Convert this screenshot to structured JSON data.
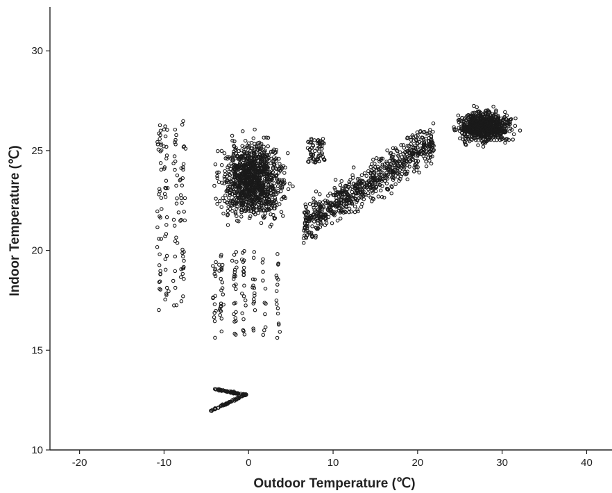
{
  "chart_data": {
    "type": "scatter",
    "title": "",
    "xlabel": "Outdoor Temperature (℃)",
    "ylabel": "Indoor Temperature (℃)",
    "xlim": [
      -23.5,
      43
    ],
    "ylim": [
      10,
      32.2
    ],
    "xticks": [
      -20,
      -10,
      0,
      10,
      20,
      30,
      40
    ],
    "yticks": [
      10,
      15,
      20,
      25,
      30
    ],
    "xtick_labels": [
      "-20",
      "-10",
      "0",
      "10",
      "20",
      "30",
      "40"
    ],
    "ytick_labels": [
      "10",
      "15",
      "20",
      "25",
      "30"
    ],
    "grid": false,
    "marker": "open-circle",
    "marker_color": "#1a1a1a",
    "point_count": 3100,
    "series": [
      {
        "clusters": [
          {
            "desc": "cold dense",
            "x_range": [
              -8.5,
              6.5
            ],
            "y_range": [
              19.0,
              26.8
            ],
            "center": [
              0.5,
              23.5
            ],
            "share": 0.36
          },
          {
            "desc": "cold sparse left",
            "x_range": [
              -10.5,
              -7
            ],
            "y_range": [
              17.0,
              26.6
            ],
            "center": [
              -8.5,
              22.5
            ],
            "share": 0.04
          },
          {
            "desc": "cold low streaks",
            "x_range": [
              -4.5,
              3.5
            ],
            "y_range": [
              15.6,
              20.0
            ],
            "center": [
              -1.5,
              18.0
            ],
            "share": 0.04
          },
          {
            "desc": "transition",
            "x_range": [
              6.5,
              22
            ],
            "y_range": [
              20.0,
              26.5
            ],
            "center": [
              15,
              23.5
            ],
            "share": 0.26
          },
          {
            "desc": "summer dense",
            "x_range": [
              22,
              35
            ],
            "y_range": [
              24.6,
              27.9
            ],
            "center": [
              28,
              26.2
            ],
            "share": 0.26
          },
          {
            "desc": "outlier branch",
            "x_range": [
              -4.5,
              -0.2
            ],
            "y_range": [
              11.9,
              13.1
            ],
            "center": [
              -2.5,
              12.5
            ],
            "share": 0.04
          }
        ]
      }
    ]
  }
}
